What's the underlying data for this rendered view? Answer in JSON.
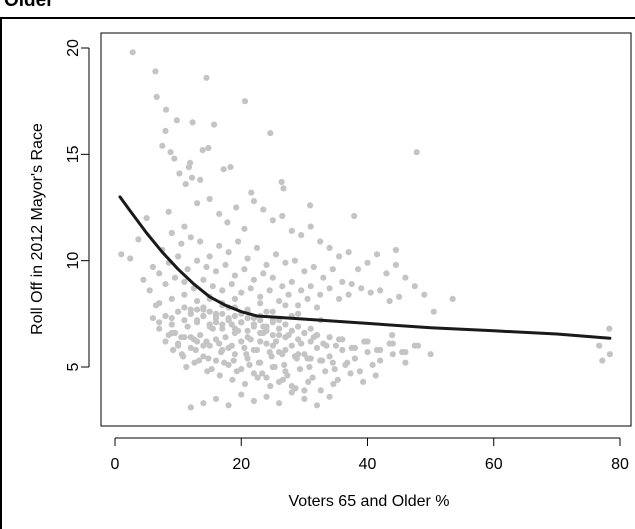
{
  "heading": "Older",
  "chart_data": {
    "type": "scatter",
    "title": "",
    "xlabel": "Voters 65 and Older %",
    "ylabel": "Roll Off in 2012 Mayor's Race",
    "xlim": [
      0,
      80
    ],
    "ylim": [
      3,
      20
    ],
    "x_ticks": [
      0,
      20,
      40,
      60,
      80
    ],
    "y_ticks": [
      5,
      10,
      15,
      20
    ],
    "grid": false,
    "legend": "none",
    "colors": {
      "points": "#c4c4c4",
      "fit_line": "#1a1a1a"
    },
    "series": [
      {
        "kind": "points",
        "x": [
          2.8,
          6.4,
          6.6,
          8.1,
          9.8,
          14.5,
          20.6,
          24.6,
          26.4,
          47.8,
          7.5,
          8.0,
          8.8,
          12.3,
          11.9,
          13.9,
          15.7,
          14.8,
          11.7,
          12.2,
          11.2,
          9.4,
          10.2,
          17.2,
          18.3,
          13.5,
          21.6,
          26.7,
          30.9,
          37.9,
          53.5,
          44.5,
          1.0,
          2.4,
          3.7,
          5.0,
          8.5,
          11.0,
          13.0,
          15.0,
          16.5,
          17.8,
          19.2,
          20.5,
          22.0,
          23.5,
          25.0,
          26.5,
          28.0,
          29.5,
          31.0,
          32.5,
          34.0,
          35.5,
          37.0,
          38.5,
          40.0,
          41.5,
          43.0,
          44.5,
          46.0,
          47.5,
          49.0,
          50.5,
          4.5,
          6.0,
          7.5,
          9.0,
          10.5,
          12.0,
          13.5,
          15.0,
          16.5,
          18.0,
          19.5,
          21.0,
          22.5,
          24.0,
          25.5,
          27.0,
          28.5,
          30.0,
          31.5,
          33.0,
          34.5,
          36.0,
          37.5,
          39.0,
          40.5,
          42.0,
          43.5,
          45.0,
          5.5,
          7.0,
          8.5,
          10.0,
          11.5,
          13.0,
          14.5,
          16.0,
          17.5,
          19.0,
          20.5,
          22.0,
          23.5,
          25.0,
          26.5,
          28.0,
          29.5,
          31.0,
          32.5,
          34.0,
          35.5,
          37.0,
          6.5,
          8.0,
          9.5,
          11.0,
          12.5,
          14.0,
          15.5,
          17.0,
          18.5,
          20.0,
          21.5,
          23.0,
          24.5,
          26.0,
          27.5,
          29.0,
          30.5,
          32.0,
          7.0,
          9.0,
          11.0,
          13.0,
          15.0,
          17.0,
          19.0,
          21.0,
          23.0,
          25.0,
          27.0,
          29.0,
          12.0,
          14.0,
          16.0,
          18.0,
          20.0,
          22.0,
          24.0,
          26.0,
          28.0,
          16.0,
          18.5,
          21.0,
          23.5,
          32.6,
          43.9,
          76.7,
          77.2,
          78.4,
          78.3,
          6.0,
          7.0,
          8.0,
          9.0,
          10.0,
          11.0,
          12.0,
          13.0,
          14.0,
          15.0,
          16.0,
          17.0,
          18.0,
          19.0,
          20.0,
          21.0,
          22.0,
          23.0,
          24.0,
          25.0,
          26.0,
          27.0,
          28.0,
          29.0,
          30.0,
          31.0,
          32.0,
          33.0,
          34.0,
          35.0,
          36.0,
          38.0,
          40.0,
          42.0,
          44.0,
          46.0,
          48.0,
          50.0,
          9.5,
          11.5,
          13.5,
          15.5,
          17.5,
          19.5,
          21.5,
          23.5,
          25.5,
          27.5,
          29.5,
          31.5,
          33.5,
          35.5,
          37.5,
          39.5,
          41.5,
          43.5,
          45.5,
          47.5,
          10.0,
          12.0,
          14.0,
          16.0,
          18.0,
          20.0,
          22.0,
          24.0,
          26.0,
          28.0,
          30.0,
          32.0,
          34.0,
          36.0,
          38.0,
          40.0,
          42.0,
          44.0,
          46.0,
          10.8,
          12.8,
          14.8,
          16.8,
          18.8,
          20.8,
          22.8,
          24.8,
          26.8,
          28.8,
          30.8,
          32.8,
          34.8,
          36.8,
          38.8,
          40.8,
          11.3,
          13.3,
          15.3,
          17.3,
          19.3,
          21.3,
          23.3,
          25.3,
          27.3,
          29.3,
          31.3,
          33.3,
          35.3,
          37.3,
          39.3,
          41.3,
          9.2,
          10.6,
          12.6,
          14.6,
          16.6,
          18.6,
          20.6,
          22.6,
          24.6,
          26.6,
          28.6,
          30.6,
          32.6,
          34.6,
          8.0,
          10.0,
          12.0,
          14.0,
          16.0,
          18.0,
          20.0,
          22.0,
          24.0,
          26.0,
          28.0,
          30.0,
          7.0,
          9.0,
          11.0,
          13.0,
          15.0,
          17.0,
          19.0,
          21.0,
          23.0,
          25.0,
          27.0,
          12.0,
          14.0,
          16.0,
          18.0,
          20.0,
          22.0,
          24.0,
          26.0,
          28.0,
          30.0,
          32.0,
          34.0,
          13.0,
          15.0,
          17.0,
          19.0,
          21.0,
          23.0,
          25.0,
          27.0,
          29.0,
          31.0,
          14.0,
          16.0,
          18.0,
          20.0,
          22.0,
          24.0,
          26.0,
          15.0,
          17.0,
          19.0,
          21.0,
          23.0,
          25.0,
          9.0,
          10.0,
          11.0,
          12.0,
          13.0,
          14.0,
          15.0,
          16.0,
          17.0,
          18.0,
          19.0,
          20.0,
          21.0,
          22.0,
          23.0,
          24.0,
          25.0,
          26.0,
          27.0,
          28.0,
          29.0,
          30.0,
          31.0,
          32.0,
          8.5,
          10.5,
          12.5,
          14.5,
          16.5,
          18.5,
          20.5,
          22.5,
          24.5,
          26.5,
          28.5,
          30.5,
          32.5,
          34.5,
          36.5
        ],
        "y": [
          19.8,
          18.9,
          17.7,
          17.1,
          16.6,
          18.6,
          17.5,
          16.0,
          13.7,
          15.1,
          15.4,
          16.1,
          15.1,
          16.5,
          14.6,
          15.2,
          16.4,
          15.3,
          14.4,
          13.9,
          13.6,
          14.8,
          14.1,
          14.3,
          14.4,
          13.8,
          13.2,
          13.4,
          12.6,
          12.1,
          8.2,
          10.5,
          10.3,
          10.1,
          11.0,
          12.0,
          12.3,
          11.6,
          12.7,
          12.9,
          12.2,
          11.8,
          12.5,
          11.5,
          12.8,
          12.4,
          11.9,
          12.1,
          11.4,
          11.2,
          11.6,
          10.9,
          10.6,
          10.2,
          10.4,
          9.6,
          9.9,
          10.3,
          9.4,
          9.8,
          9.2,
          8.8,
          8.4,
          7.6,
          9.1,
          9.7,
          10.5,
          11.3,
          10.8,
          11.1,
          10.9,
          10.2,
          10.7,
          10.4,
          10.9,
          10.1,
          10.6,
          9.8,
          10.3,
          9.9,
          10.0,
          9.5,
          9.7,
          9.2,
          9.6,
          9.0,
          8.9,
          8.7,
          8.5,
          8.6,
          8.1,
          8.3,
          8.6,
          9.4,
          9.9,
          10.2,
          9.6,
          10.0,
          9.7,
          9.5,
          9.8,
          9.3,
          9.6,
          9.1,
          9.4,
          9.2,
          8.8,
          9.0,
          8.6,
          8.8,
          8.4,
          8.7,
          8.2,
          8.4,
          7.9,
          8.9,
          9.2,
          9.0,
          8.7,
          9.1,
          8.8,
          8.6,
          8.9,
          8.5,
          8.7,
          8.3,
          8.6,
          8.1,
          8.4,
          7.9,
          8.2,
          7.8,
          8.0,
          8.2,
          8.4,
          8.1,
          8.3,
          7.9,
          8.2,
          7.7,
          8.0,
          7.6,
          7.9,
          7.5,
          7.7,
          7.7,
          7.4,
          7.8,
          7.5,
          7.3,
          7.6,
          7.2,
          7.4,
          7.1,
          7.0,
          7.3,
          6.9,
          7.2,
          6.5,
          6.0,
          5.3,
          5.6,
          6.8,
          7.3,
          7.1,
          7.4,
          7.0,
          7.6,
          7.2,
          7.5,
          7.1,
          7.4,
          6.9,
          7.3,
          7.0,
          7.2,
          6.8,
          7.1,
          6.7,
          7.0,
          6.6,
          6.9,
          6.5,
          6.8,
          6.4,
          6.7,
          6.3,
          6.6,
          6.2,
          6.5,
          6.1,
          6.4,
          6.0,
          6.3,
          5.9,
          6.2,
          5.8,
          6.1,
          5.7,
          6.0,
          5.6,
          6.6,
          6.9,
          6.5,
          6.8,
          6.4,
          6.7,
          6.3,
          6.6,
          6.2,
          6.5,
          6.1,
          6.4,
          6.0,
          6.3,
          5.9,
          6.2,
          5.8,
          6.1,
          5.7,
          6.0,
          6.1,
          6.4,
          6.0,
          6.3,
          5.9,
          6.2,
          5.8,
          6.1,
          5.7,
          6.0,
          5.6,
          5.9,
          5.5,
          5.8,
          5.4,
          5.7,
          5.3,
          5.6,
          5.2,
          5.5,
          5.8,
          5.4,
          5.7,
          5.3,
          5.6,
          5.2,
          5.5,
          5.1,
          5.4,
          5.0,
          5.3,
          4.9,
          5.2,
          4.8,
          5.1,
          5.0,
          5.3,
          4.9,
          5.2,
          4.8,
          5.1,
          4.7,
          5.0,
          4.6,
          4.9,
          4.5,
          4.8,
          4.4,
          4.7,
          4.3,
          4.6,
          5.8,
          5.6,
          5.2,
          4.8,
          4.6,
          4.4,
          4.2,
          4.5,
          4.1,
          4.4,
          4.0,
          4.3,
          3.9,
          4.2,
          6.2,
          6.0,
          5.9,
          5.5,
          5.3,
          5.1,
          4.9,
          4.7,
          4.5,
          4.3,
          4.1,
          3.9,
          6.8,
          6.6,
          6.4,
          6.2,
          6.0,
          5.8,
          5.6,
          5.4,
          5.2,
          5.0,
          4.8,
          3.1,
          3.3,
          3.5,
          3.2,
          3.7,
          3.4,
          3.6,
          3.3,
          3.8,
          3.5,
          3.2,
          3.6,
          7.2,
          7.0,
          6.8,
          6.6,
          6.4,
          6.2,
          6.0,
          5.8,
          5.6,
          5.4,
          7.8,
          7.5,
          7.3,
          7.1,
          6.9,
          6.7,
          6.5,
          8.2,
          8.0,
          7.8,
          7.6,
          7.4,
          7.2,
          7.3,
          7.6,
          7.8,
          7.5,
          7.7,
          7.4,
          7.6,
          7.3,
          7.5,
          7.2,
          7.4,
          7.1,
          7.3,
          7.0,
          7.2,
          6.9,
          7.1,
          6.8,
          7.0,
          6.7,
          6.9,
          6.6,
          6.8,
          6.5,
          6.5,
          6.4,
          6.3,
          6.2,
          6.1,
          6.0,
          5.9,
          5.8,
          5.7,
          5.6,
          5.5,
          5.4,
          5.3,
          5.2,
          5.1
        ]
      },
      {
        "kind": "line",
        "x": [
          0.8,
          2.5,
          5.0,
          7.5,
          10.0,
          12.5,
          15.0,
          17.5,
          20.0,
          22.5,
          25.0,
          30.0,
          40.0,
          50.0,
          60.0,
          70.0,
          78.4
        ],
        "y": [
          13.0,
          12.3,
          11.3,
          10.4,
          9.6,
          8.9,
          8.3,
          7.9,
          7.6,
          7.4,
          7.35,
          7.25,
          7.05,
          6.85,
          6.7,
          6.55,
          6.35
        ]
      }
    ]
  }
}
